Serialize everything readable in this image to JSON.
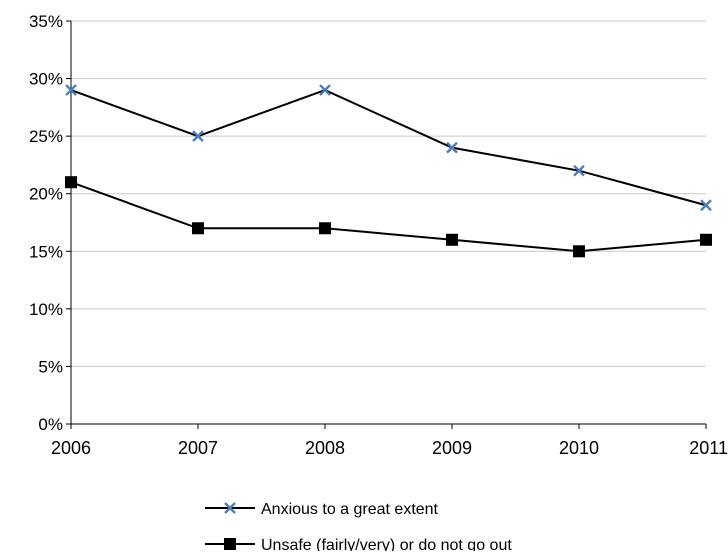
{
  "chart_data": {
    "type": "line",
    "title": "",
    "xlabel": "",
    "ylabel": "",
    "x": [
      "2006",
      "2007",
      "2008",
      "2009",
      "2010",
      "2011"
    ],
    "ylim": [
      0,
      35
    ],
    "yticks": [
      0,
      5,
      10,
      15,
      20,
      25,
      30,
      35
    ],
    "ytick_labels": [
      "0%",
      "5%",
      "10%",
      "15%",
      "20%",
      "25%",
      "30%",
      "35%"
    ],
    "grid": true,
    "legend_position": "bottom",
    "series": [
      {
        "name": "Anxious to a great extent",
        "values": [
          29,
          25,
          29,
          24,
          22,
          19
        ],
        "line_color": "#000000",
        "marker": "x",
        "marker_color": "#4a7ebb"
      },
      {
        "name": "Unsafe (fairly/very) or do not go out",
        "values": [
          21,
          17,
          17,
          16,
          15,
          16
        ],
        "line_color": "#000000",
        "marker": "square",
        "marker_color": "#000000"
      }
    ]
  }
}
